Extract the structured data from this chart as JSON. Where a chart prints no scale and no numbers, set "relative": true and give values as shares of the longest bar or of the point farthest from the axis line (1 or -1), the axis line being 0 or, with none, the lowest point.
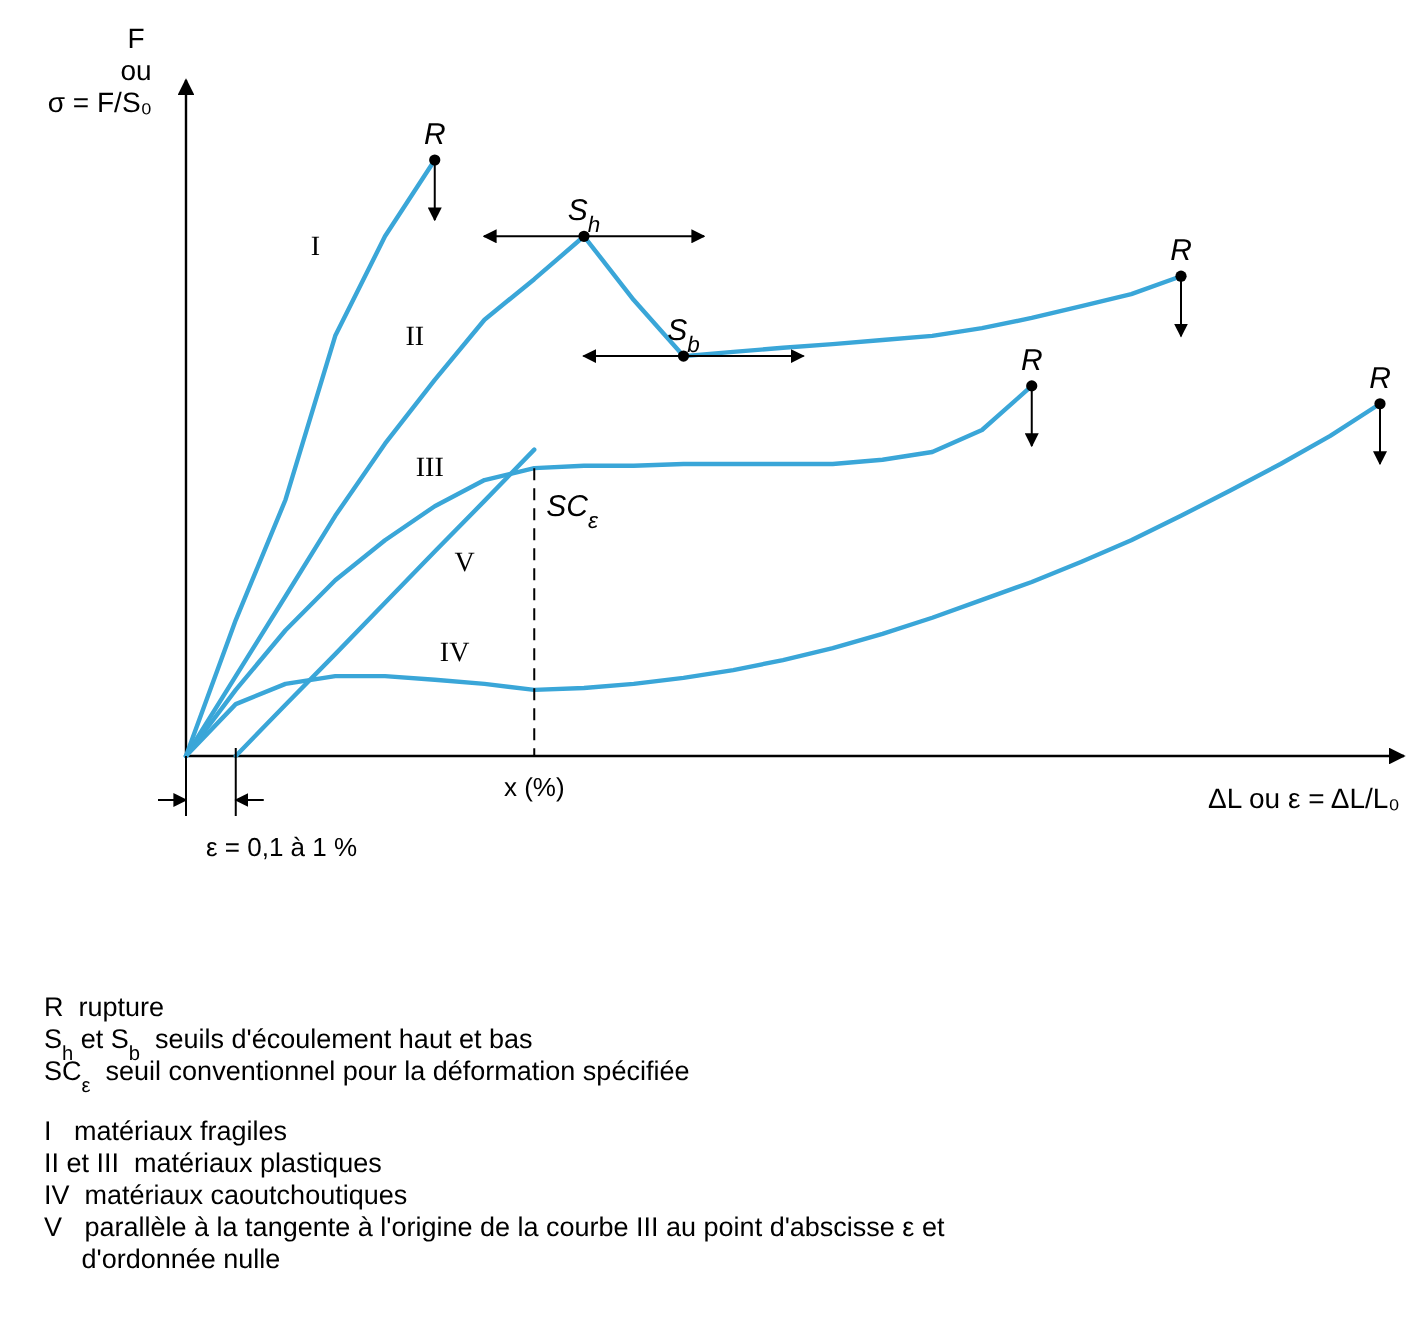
{
  "chart_data": {
    "type": "line",
    "relative": true,
    "ylabel": "F\nou\nσ = F/S₀",
    "xlabel": "ΔL ou ε = ΔL/L₀",
    "line_style": "solid",
    "marker": "none",
    "categories": [
      null,
      null,
      null,
      null,
      null,
      null,
      null,
      null,
      null,
      null,
      null,
      null,
      null,
      null,
      null,
      null,
      null,
      null,
      null,
      null,
      null,
      null,
      null,
      null,
      null
    ],
    "series": [
      {
        "name": "I",
        "color": "#3aa6d8",
        "values": [
          0,
          0.228,
          0.43,
          0.705,
          0.872,
          1,
          null,
          null,
          null,
          null,
          null,
          null,
          null,
          null,
          null,
          null,
          null,
          null,
          null,
          null,
          null,
          null,
          null,
          null,
          null
        ]
      },
      {
        "name": "II",
        "color": "#3aa6d8",
        "values": [
          0,
          0.134,
          0.268,
          0.403,
          0.524,
          0.631,
          0.732,
          0.8,
          0.872,
          0.765,
          0.671,
          0.678,
          0.685,
          0.691,
          0.698,
          0.705,
          0.718,
          0.735,
          0.755,
          0.775,
          0.805,
          null,
          null,
          null,
          null
        ]
      },
      {
        "name": "III",
        "color": "#3aa6d8",
        "values": [
          0,
          0.111,
          0.211,
          0.295,
          0.362,
          0.419,
          0.463,
          0.483,
          0.487,
          0.487,
          0.49,
          0.49,
          0.49,
          0.49,
          0.497,
          0.51,
          0.547,
          0.621,
          null,
          null,
          null,
          null,
          null,
          null,
          null
        ]
      },
      {
        "name": "IV",
        "color": "#3aa6d8",
        "values": [
          0,
          0.087,
          0.121,
          0.134,
          0.134,
          0.128,
          0.121,
          0.111,
          0.114,
          0.121,
          0.131,
          0.144,
          0.161,
          0.181,
          0.205,
          0.232,
          0.262,
          0.292,
          0.326,
          0.362,
          0.403,
          0.446,
          0.49,
          0.537,
          0.591
        ]
      },
      {
        "name": "V",
        "color": "#3aa6d8",
        "values": [
          null,
          0,
          0.086,
          0.171,
          0.257,
          0.343,
          0.428,
          0.514,
          null,
          null,
          null,
          null,
          null,
          null,
          null,
          null,
          null,
          null,
          null,
          null,
          null,
          null,
          null,
          null,
          null
        ]
      }
    ],
    "annotations": [
      {
        "text": "R",
        "y": 1
      },
      {
        "text": "S$_{h}$",
        "y": 0.872
      },
      {
        "text": "S$_{b}$",
        "y": 0.671
      },
      {
        "text": "R",
        "y": 0.805
      },
      {
        "text": "R",
        "y": 0.621
      },
      {
        "text": "SC$_{ε}$",
        "y": 0.483
      },
      {
        "text": "R",
        "y": 0.591
      },
      "x (%)",
      "ε = 0,1 à 1 %",
      "R  rupture",
      "S$_{h}$ et S$_{b}$  seuils d'écoulement haut et bas",
      "SC$_{ε}$  seuil conventionnel pour la déformation spécifiée",
      "I   matériaux fragiles",
      "II et III  matériaux plastiques",
      "IV  matériaux caoutchoutiques",
      "V   parallèle à la tangente à l'origine de la courbe III au point d'abscisse ε et d'ordonnée nulle"
    ]
  }
}
